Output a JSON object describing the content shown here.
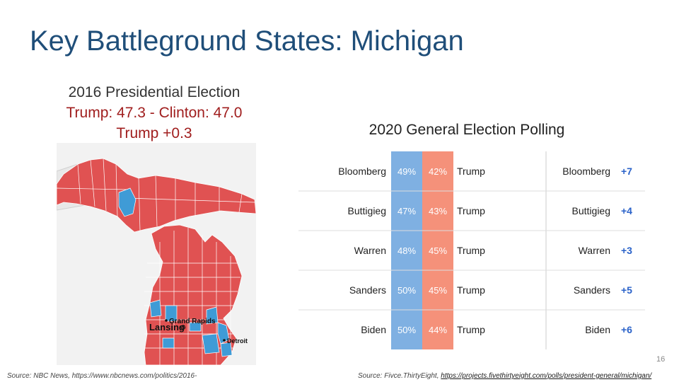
{
  "slide": {
    "title": "Key Battleground States: Michigan",
    "page_number": "16"
  },
  "left_panel": {
    "line1": "2016 Presidential Election",
    "line2": "Trump: 47.3 - Clinton: 47.0",
    "line3": "Trump +0.3",
    "map_labels": {
      "grand_rapids": "Grand Rapids",
      "lansing": "Lansing",
      "detroit": "Detroit"
    },
    "source": "Source: NBC News, https://www.nbcnews.com/politics/2016-"
  },
  "right_panel": {
    "heading": "2020 General Election Polling",
    "rows": [
      {
        "candidate": "Bloomberg",
        "dem": "49%",
        "rep": "42%",
        "opponent": "Trump",
        "margin": "+7"
      },
      {
        "candidate": "Buttigieg",
        "dem": "47%",
        "rep": "43%",
        "opponent": "Trump",
        "margin": "+4"
      },
      {
        "candidate": "Warren",
        "dem": "48%",
        "rep": "45%",
        "opponent": "Trump",
        "margin": "+3"
      },
      {
        "candidate": "Sanders",
        "dem": "50%",
        "rep": "45%",
        "opponent": "Trump",
        "margin": "+5"
      },
      {
        "candidate": "Biden",
        "dem": "50%",
        "rep": "44%",
        "opponent": "Trump",
        "margin": "+6"
      }
    ],
    "source_prefix": "Source: Fivce.ThirtyEight, ",
    "source_link": "https://projects.fivethirtyeight.com/polls/president-general/michigan/"
  },
  "colors": {
    "title": "#1f4e79",
    "republican_red": "#e05252",
    "democrat_blue": "#3f9bd6",
    "dem_column": "#7fb0e2",
    "rep_column": "#f5917a",
    "margin_blue": "#2a62c9"
  }
}
